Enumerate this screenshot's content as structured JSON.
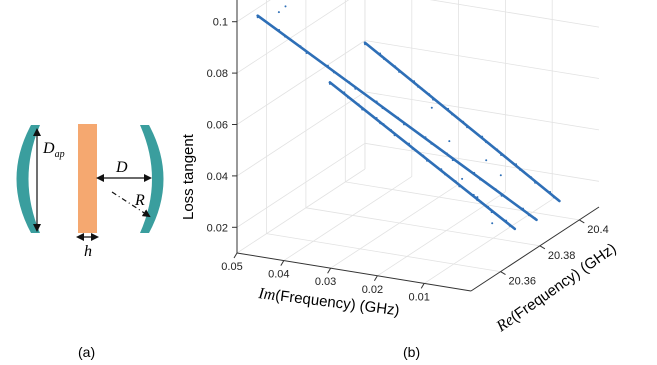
{
  "panel_a": {
    "caption": "(a)",
    "labels": {
      "d_ap_main": "D",
      "d_ap_sub": "ap",
      "d": "D",
      "r": "R",
      "h": "h"
    },
    "colors": {
      "mirror": "#3a9e9e",
      "slab": "#f5a870",
      "arrow": "#111111"
    }
  },
  "panel_b": {
    "caption": "(b)",
    "chart_data": {
      "type": "scatter",
      "title": "",
      "xlabel_italic": "Im",
      "xlabel_rest": "(Frequency) (GHz)",
      "ylabel_italic": "Re",
      "ylabel_rest": "(Frequency) (GHz)",
      "zlabel": "Loss tangent",
      "x_ticks": [
        "0.05",
        "0.04",
        "0.03",
        "0.02",
        "0.01"
      ],
      "y_ticks": [
        "20.36",
        "20.38",
        "20.4"
      ],
      "z_ticks": [
        "0.02",
        "0.04",
        "0.06",
        "0.08",
        "0.1"
      ],
      "xlim": [
        0.0,
        0.05
      ],
      "ylim": [
        20.345,
        20.41
      ],
      "zlim": [
        0.01,
        0.11
      ],
      "grid": true,
      "series": [
        {
          "color": "#2e6fb7",
          "points": [
            [
              0.002,
              20.383,
              0.018
            ],
            [
              0.046,
              20.346,
              0.103
            ]
          ]
        },
        {
          "color": "#2e6fb7",
          "points": [
            [
              0.002,
              20.372,
              0.02
            ],
            [
              0.031,
              20.347,
              0.081
            ]
          ]
        },
        {
          "color": "#2e6fb7",
          "points": [
            [
              0.003,
              20.397,
              0.018
            ],
            [
              0.034,
              20.372,
              0.083
            ]
          ]
        }
      ],
      "outliers": [
        [
          0.043,
          20.353,
          0.104
        ],
        [
          0.044,
          20.352,
          0.102
        ],
        [
          0.016,
          20.372,
          0.05
        ],
        [
          0.01,
          20.372,
          0.03
        ],
        [
          0.025,
          20.36,
          0.06
        ],
        [
          0.006,
          20.37,
          0.022
        ],
        [
          0.021,
          20.375,
          0.06
        ],
        [
          0.006,
          20.367,
          0.048
        ],
        [
          0.005,
          20.372,
          0.04
        ],
        [
          0.012,
          20.369,
          0.038
        ]
      ]
    }
  }
}
